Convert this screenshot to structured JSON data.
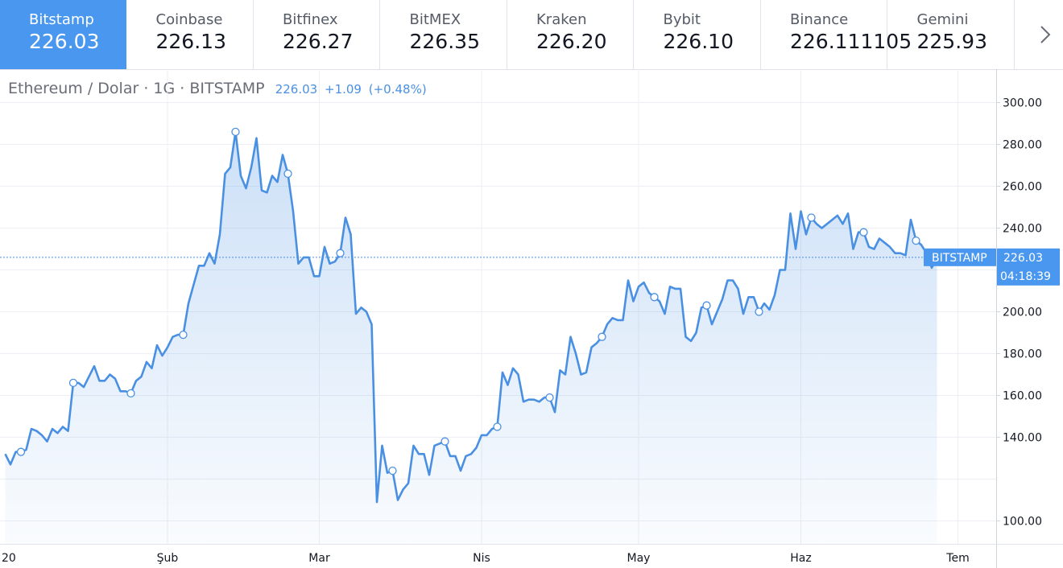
{
  "tabs": [
    {
      "name": "Bitstamp",
      "price": "226.03",
      "active": true
    },
    {
      "name": "Coinbase",
      "price": "226.13"
    },
    {
      "name": "Bitfinex",
      "price": "226.27"
    },
    {
      "name": "BitMEX",
      "price": "226.35"
    },
    {
      "name": "Kraken",
      "price": "226.20"
    },
    {
      "name": "Bybit",
      "price": "226.10"
    },
    {
      "name": "Binance",
      "price": "226.111105"
    },
    {
      "name": "Gemini",
      "price": "225.93"
    }
  ],
  "next_icon": "chevron-right-icon",
  "legend": {
    "title": "Ethereum / Dolar · 1G · BITSTAMP",
    "last": "226.03",
    "change": "+1.09",
    "change_pct": "(+0.48%)"
  },
  "price_label": {
    "exchange": "BITSTAMP",
    "price": "226.03",
    "countdown": "04:18:39"
  },
  "colors": {
    "line": "#4a90e2",
    "accent": "#4a97f0"
  },
  "chart_data": {
    "type": "area",
    "title": "Ethereum / Dolar · 1G · BITSTAMP",
    "ylim": [
      92,
      305
    ],
    "y_ticks": [
      100,
      120,
      140,
      160,
      180,
      200,
      220,
      240,
      260,
      280,
      300
    ],
    "y_tick_labels": [
      "100.00",
      "",
      "140.00",
      "160.00",
      "180.00",
      "200.00",
      "",
      "240.00",
      "260.00",
      "280.00",
      "300.00"
    ],
    "x_ticks": [
      {
        "label": "20",
        "x": 0
      },
      {
        "label": "Şub",
        "x": 31
      },
      {
        "label": "Mar",
        "x": 60
      },
      {
        "label": "Nis",
        "x": 91
      },
      {
        "label": "May",
        "x": 121
      },
      {
        "label": "Haz",
        "x": 152
      },
      {
        "label": "Tem",
        "x": 182
      }
    ],
    "grid": true,
    "current_price": 226.03,
    "points": [
      [
        0,
        132
      ],
      [
        1,
        127
      ],
      [
        2,
        133
      ],
      [
        3,
        133
      ],
      [
        4,
        134
      ],
      [
        5,
        144
      ],
      [
        6,
        143
      ],
      [
        7,
        141
      ],
      [
        8,
        138
      ],
      [
        9,
        144
      ],
      [
        10,
        142
      ],
      [
        11,
        145
      ],
      [
        12,
        143
      ],
      [
        13,
        166
      ],
      [
        14,
        166
      ],
      [
        15,
        164
      ],
      [
        16,
        169
      ],
      [
        17,
        174
      ],
      [
        18,
        167
      ],
      [
        19,
        167
      ],
      [
        20,
        170
      ],
      [
        21,
        168
      ],
      [
        22,
        162
      ],
      [
        23,
        162
      ],
      [
        24,
        161
      ],
      [
        25,
        167
      ],
      [
        26,
        169
      ],
      [
        27,
        176
      ],
      [
        28,
        173
      ],
      [
        29,
        184
      ],
      [
        30,
        179
      ],
      [
        31,
        183
      ],
      [
        32,
        188
      ],
      [
        33,
        189
      ],
      [
        34,
        189
      ],
      [
        35,
        204
      ],
      [
        36,
        213
      ],
      [
        37,
        222
      ],
      [
        38,
        222
      ],
      [
        39,
        228
      ],
      [
        40,
        223
      ],
      [
        41,
        237
      ],
      [
        42,
        266
      ],
      [
        43,
        269
      ],
      [
        44,
        286
      ],
      [
        45,
        265
      ],
      [
        46,
        259
      ],
      [
        47,
        269
      ],
      [
        48,
        283
      ],
      [
        49,
        258
      ],
      [
        50,
        257
      ],
      [
        51,
        265
      ],
      [
        52,
        262
      ],
      [
        53,
        275
      ],
      [
        54,
        266
      ],
      [
        55,
        248
      ],
      [
        56,
        223
      ],
      [
        57,
        226
      ],
      [
        58,
        226
      ],
      [
        59,
        217
      ],
      [
        60,
        217
      ],
      [
        61,
        231
      ],
      [
        62,
        223
      ],
      [
        63,
        224
      ],
      [
        64,
        228
      ],
      [
        65,
        245
      ],
      [
        66,
        237
      ],
      [
        67,
        199
      ],
      [
        68,
        202
      ],
      [
        69,
        200
      ],
      [
        70,
        194
      ],
      [
        71,
        109
      ],
      [
        72,
        136
      ],
      [
        73,
        123
      ],
      [
        74,
        124
      ],
      [
        75,
        110
      ],
      [
        76,
        115
      ],
      [
        77,
        118
      ],
      [
        78,
        136
      ],
      [
        79,
        132
      ],
      [
        80,
        132
      ],
      [
        81,
        122
      ],
      [
        82,
        136
      ],
      [
        83,
        137
      ],
      [
        84,
        138
      ],
      [
        85,
        131
      ],
      [
        86,
        131
      ],
      [
        87,
        124
      ],
      [
        88,
        131
      ],
      [
        89,
        132
      ],
      [
        90,
        135
      ],
      [
        91,
        141
      ],
      [
        92,
        141
      ],
      [
        93,
        144
      ],
      [
        94,
        145
      ],
      [
        95,
        171
      ],
      [
        96,
        165
      ],
      [
        97,
        173
      ],
      [
        98,
        170
      ],
      [
        99,
        157
      ],
      [
        100,
        158
      ],
      [
        101,
        158
      ],
      [
        102,
        157
      ],
      [
        103,
        159
      ],
      [
        104,
        159
      ],
      [
        105,
        152
      ],
      [
        106,
        172
      ],
      [
        107,
        170
      ],
      [
        108,
        188
      ],
      [
        109,
        180
      ],
      [
        110,
        170
      ],
      [
        111,
        171
      ],
      [
        112,
        183
      ],
      [
        113,
        185
      ],
      [
        114,
        188
      ],
      [
        115,
        194
      ],
      [
        116,
        197
      ],
      [
        117,
        196
      ],
      [
        118,
        196
      ],
      [
        119,
        215
      ],
      [
        120,
        205
      ],
      [
        121,
        212
      ],
      [
        122,
        214
      ],
      [
        123,
        209
      ],
      [
        124,
        207
      ],
      [
        125,
        205
      ],
      [
        126,
        199
      ],
      [
        127,
        212
      ],
      [
        128,
        211
      ],
      [
        129,
        211
      ],
      [
        130,
        188
      ],
      [
        131,
        186
      ],
      [
        132,
        190
      ],
      [
        133,
        202
      ],
      [
        134,
        203
      ],
      [
        135,
        194
      ],
      [
        136,
        200
      ],
      [
        137,
        206
      ],
      [
        138,
        215
      ],
      [
        139,
        215
      ],
      [
        140,
        211
      ],
      [
        141,
        199
      ],
      [
        142,
        207
      ],
      [
        143,
        207
      ],
      [
        144,
        200
      ],
      [
        145,
        204
      ],
      [
        146,
        201
      ],
      [
        147,
        208
      ],
      [
        148,
        220
      ],
      [
        149,
        220
      ],
      [
        150,
        247
      ],
      [
        151,
        230
      ],
      [
        152,
        248
      ],
      [
        153,
        237
      ],
      [
        154,
        245
      ],
      [
        155,
        242
      ],
      [
        156,
        240
      ],
      [
        157,
        242
      ],
      [
        158,
        244
      ],
      [
        159,
        246
      ],
      [
        160,
        242
      ],
      [
        161,
        247
      ],
      [
        162,
        230
      ],
      [
        163,
        238
      ],
      [
        164,
        238
      ],
      [
        165,
        231
      ],
      [
        166,
        230
      ],
      [
        167,
        235
      ],
      [
        168,
        233
      ],
      [
        169,
        231
      ],
      [
        170,
        228
      ],
      [
        171,
        228
      ],
      [
        172,
        227
      ],
      [
        173,
        244
      ],
      [
        174,
        234
      ],
      [
        175,
        232
      ],
      [
        176,
        228
      ],
      [
        177,
        221
      ],
      [
        178,
        226
      ]
    ],
    "markers": [
      3,
      13,
      24,
      34,
      44,
      54,
      64,
      74,
      84,
      94,
      104,
      114,
      124,
      134,
      144,
      154,
      164,
      174
    ]
  }
}
